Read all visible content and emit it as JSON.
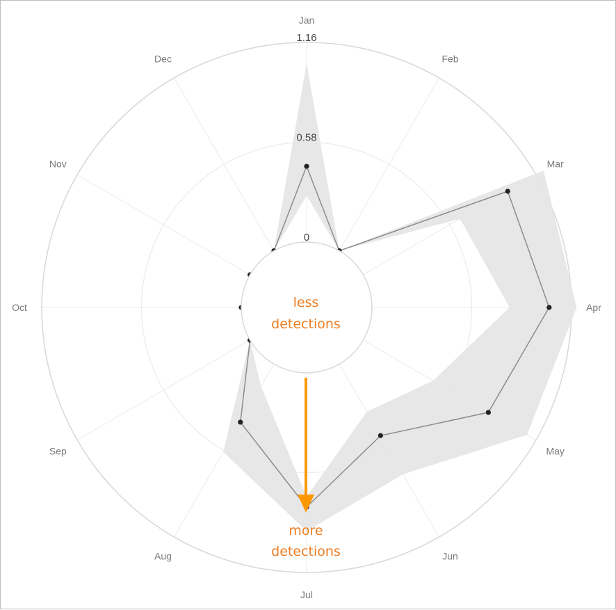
{
  "chart_data": {
    "type": "radar",
    "categories": [
      "Jan",
      "Feb",
      "Mar",
      "Apr",
      "May",
      "Jun",
      "Jul",
      "Aug",
      "Sep",
      "Oct",
      "Nov",
      "Dec"
    ],
    "radial_ticks": [
      "0",
      "0.58",
      "1.16"
    ],
    "rlim": [
      0,
      1.16
    ],
    "series": [
      {
        "values": [
          0.44,
          0.0,
          0.97,
          1.03,
          0.84,
          0.48,
          0.78,
          0.39,
          0.0,
          0.0,
          0.0,
          0.0
        ],
        "band_lower": [
          0.27,
          0.0,
          0.65,
          0.8,
          0.47,
          0.32,
          0.72,
          0.15,
          0.0,
          0.0,
          0.0,
          0.0
        ],
        "band_upper": [
          1.04,
          0.0,
          1.21,
          1.19,
          1.1,
          0.74,
          0.92,
          0.59,
          0.0,
          0.0,
          0.0,
          0.0
        ]
      }
    ],
    "grid": true,
    "colors": {
      "line": "#8c8c8c",
      "marker": "#222222",
      "band": "#e6e6e6",
      "grid": "#d9d9d9",
      "accent": "#ff9800"
    }
  },
  "annotations": {
    "inner_top_line1": "less",
    "inner_top_line2": "detections",
    "outer_bottom_line1": "more",
    "outer_bottom_line2": "detections"
  }
}
